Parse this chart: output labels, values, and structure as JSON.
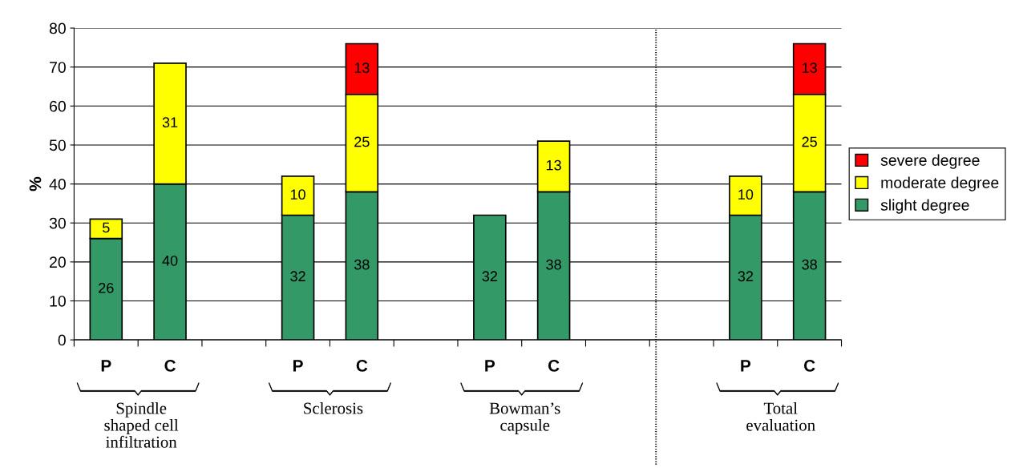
{
  "chart_data": {
    "type": "bar",
    "stacked": true,
    "ylabel": "%",
    "categories": [
      "P",
      "C",
      null,
      "P",
      "C",
      null,
      "P",
      "C",
      null,
      null,
      "P",
      "C"
    ],
    "series": [
      {
        "name": "slight degree",
        "color": "#339966",
        "values": [
          26,
          40,
          null,
          32,
          38,
          null,
          32,
          38,
          null,
          null,
          32,
          38
        ]
      },
      {
        "name": "moderate degree",
        "color": "#ffff00",
        "values": [
          5,
          31,
          null,
          10,
          25,
          null,
          null,
          13,
          null,
          null,
          10,
          25
        ]
      },
      {
        "name": "severe degree",
        "color": "#ff0000",
        "values": [
          null,
          null,
          null,
          null,
          13,
          null,
          null,
          null,
          null,
          null,
          null,
          13
        ]
      }
    ],
    "ylim": [
      0,
      80
    ],
    "yticks": [
      0,
      10,
      20,
      30,
      40,
      50,
      60,
      70,
      80
    ],
    "grid": "y",
    "legend": "right",
    "data_labels": true,
    "annotations": [
      "Spindle\nshaped cell\ninfiltration",
      "Sclerosis",
      "Bowman’s\ncapsule",
      "Total\nevaluation"
    ]
  }
}
